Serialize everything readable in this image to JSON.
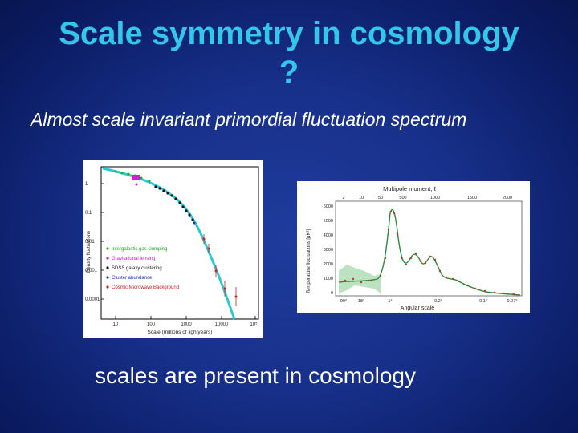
{
  "slide": {
    "title_line1": "Scale symmetry in cosmology",
    "title_line2": "?",
    "subtitle": "Almost scale invariant primordial fluctuation spectrum",
    "footer": "scales are present in cosmology"
  },
  "left_plot": {
    "ylabel": "Density fluctuations",
    "xlabel": "Scale (millions of lightyears)",
    "y_ticks": [
      "1",
      "0.1",
      "0.01",
      "0.001",
      "0.0001"
    ],
    "x_ticks": [
      "10",
      "100",
      "1000",
      "10000",
      "10⁵"
    ],
    "legend": [
      {
        "label": "Intergalactic gas clumping",
        "color": "#22aa22"
      },
      {
        "label": "Gravitational lensing",
        "color": "#cc22cc"
      },
      {
        "label": "SDSS galaxy clustering",
        "color": "#111111"
      },
      {
        "label": "Cluster abundance",
        "color": "#2233cc"
      },
      {
        "label": "Cosmic Microwave Background",
        "color": "#cc2222"
      }
    ],
    "curve_color": "#30c8d8"
  },
  "right_plot": {
    "top_label": "Multipole moment, ℓ",
    "top_ticks": [
      "2",
      "10",
      "50",
      "500",
      "1000",
      "1500",
      "2000"
    ],
    "ylabel": "Temperature fluctuations [μK²]",
    "y_ticks": [
      "6000",
      "5000",
      "4000",
      "3000",
      "2000",
      "1000",
      "0"
    ],
    "xlabel": "Angular scale",
    "x_ticks": [
      "90°",
      "18°",
      "1°",
      "0.2°",
      "0.1°",
      "0.07°"
    ],
    "curve_color": "#2e8b3a",
    "point_color": "#c0392b"
  }
}
